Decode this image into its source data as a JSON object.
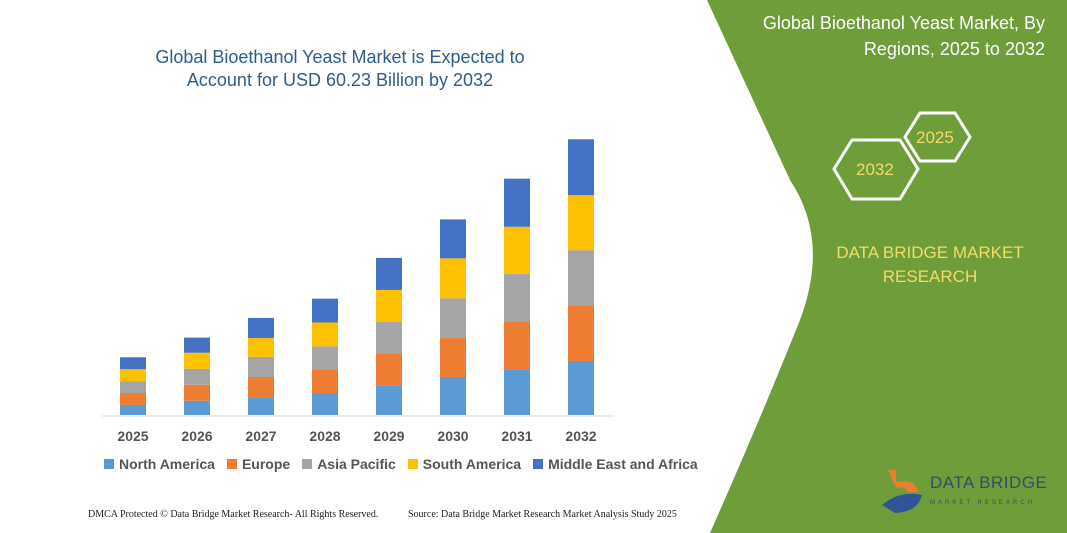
{
  "header": {
    "title": "Global Bioethanol Yeast Market is Expected to Account for USD 60.23 Billion by 2032"
  },
  "side_panel": {
    "title": "Global Bioethanol Yeast Market, By Regions, 2025 to 2032",
    "hex_start": "2025",
    "hex_end": "2032",
    "brand": "DATA BRIDGE MARKET RESEARCH",
    "logo_text": "DATA BRIDGE",
    "logo_sub": "MARKET RESEARCH",
    "background_color": "#6f9d39",
    "accent_text_color": "#f2dc6a"
  },
  "footer": {
    "left": "DMCA Protected © Data Bridge Market Research- All Rights Reserved.",
    "right": "Source: Data Bridge Market Research Market Analysis Study 2025"
  },
  "chart_data": {
    "type": "bar",
    "stacked": true,
    "title": "Global Bioethanol Yeast Market is Expected to Account for USD 60.23 Billion by 2032",
    "xlabel": "",
    "ylabel": "",
    "y_axis_visible": false,
    "grid": false,
    "legend_position": "bottom",
    "categories": [
      "2025",
      "2026",
      "2027",
      "2028",
      "2029",
      "2030",
      "2031",
      "2032"
    ],
    "series": [
      {
        "name": "North America",
        "color": "#5b9bd5",
        "values": [
          2.2,
          3.1,
          3.9,
          4.8,
          6.5,
          8.3,
          10.0,
          11.8
        ]
      },
      {
        "name": "Europe",
        "color": "#ed7d31",
        "values": [
          2.6,
          3.5,
          4.4,
          5.2,
          7.0,
          8.5,
          10.3,
          12.0
        ]
      },
      {
        "name": "Asia Pacific",
        "color": "#a5a5a5",
        "values": [
          2.6,
          3.5,
          4.4,
          5.0,
          6.8,
          8.7,
          10.5,
          12.2
        ]
      },
      {
        "name": "South America",
        "color": "#ffc000",
        "values": [
          2.6,
          3.5,
          4.1,
          5.2,
          7.0,
          8.7,
          10.3,
          12.0
        ]
      },
      {
        "name": "Middle East and Africa",
        "color": "#4472c4",
        "values": [
          2.6,
          3.3,
          4.4,
          5.2,
          7.0,
          8.5,
          10.5,
          12.2
        ]
      }
    ]
  }
}
